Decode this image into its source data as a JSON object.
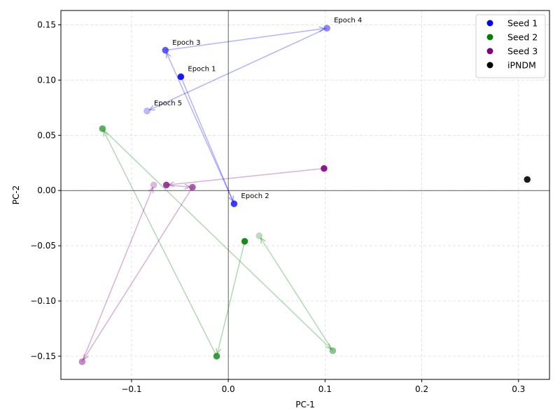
{
  "chart_data": {
    "type": "scatter",
    "xlabel": "PC-1",
    "ylabel": "PC-2",
    "xlim": [
      -0.173,
      0.332
    ],
    "ylim": [
      -0.171,
      0.163
    ],
    "xticks": [
      -0.1,
      0.0,
      0.1,
      0.2,
      0.3
    ],
    "yticks": [
      -0.15,
      -0.1,
      -0.05,
      0.0,
      0.05,
      0.1,
      0.15
    ],
    "xtick_labels": [
      "−0.1",
      "0.0",
      "0.1",
      "0.2",
      "0.3"
    ],
    "ytick_labels": [
      "−0.15",
      "−0.10",
      "−0.05",
      "0.00",
      "0.05",
      "0.10",
      "0.15"
    ],
    "grid": true,
    "legend_position": "top-right",
    "series": [
      {
        "name": "Seed 1",
        "color": "#0000ff",
        "points": [
          {
            "x": -0.049,
            "y": 0.103
          },
          {
            "x": 0.006,
            "y": -0.012
          },
          {
            "x": -0.065,
            "y": 0.127
          },
          {
            "x": 0.102,
            "y": 0.147
          },
          {
            "x": -0.084,
            "y": 0.072
          }
        ],
        "labels": [
          "Epoch 1",
          "Epoch 2",
          "Epoch 3",
          "Epoch 4",
          "Epoch 5"
        ]
      },
      {
        "name": "Seed 2",
        "color": "#008000",
        "points": [
          {
            "x": 0.017,
            "y": -0.046
          },
          {
            "x": -0.012,
            "y": -0.15
          },
          {
            "x": -0.13,
            "y": 0.056
          },
          {
            "x": 0.108,
            "y": -0.145
          },
          {
            "x": 0.032,
            "y": -0.041
          }
        ]
      },
      {
        "name": "Seed 3",
        "color": "#800080",
        "points": [
          {
            "x": 0.099,
            "y": 0.02
          },
          {
            "x": -0.064,
            "y": 0.005
          },
          {
            "x": -0.037,
            "y": 0.003
          },
          {
            "x": -0.151,
            "y": -0.155
          },
          {
            "x": -0.077,
            "y": 0.005
          }
        ]
      },
      {
        "name": "iPNDM",
        "color": "#000000",
        "points": [
          {
            "x": 0.309,
            "y": 0.01
          }
        ]
      }
    ]
  }
}
